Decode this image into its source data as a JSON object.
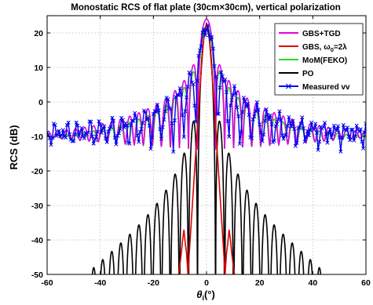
{
  "chart_data": {
    "type": "line",
    "title": "Monostatic RCS of flat plate (30cm×30cm), vertical polarization",
    "xlabel": "θi(°)",
    "xlabel_parts": {
      "symbol": "θ",
      "sub": "i",
      "unit": "(°)"
    },
    "ylabel": "RCS (dB)",
    "xlim": [
      -60,
      60
    ],
    "ylim": [
      -50,
      25
    ],
    "xticks": [
      -60,
      -40,
      -20,
      0,
      20,
      40,
      60
    ],
    "yticks": [
      -50,
      -40,
      -30,
      -20,
      -10,
      0,
      10,
      20
    ],
    "xtick_labels": [
      "-60",
      "-40",
      "-20",
      "0",
      "20",
      "40",
      "60"
    ],
    "ytick_labels": [
      "-50",
      "-40",
      "-30",
      "-20",
      "-10",
      "0",
      "10",
      "20"
    ],
    "grid": true,
    "legend_position": "top-right",
    "series": [
      {
        "name": "GBS+TGD",
        "legend_parts": [
          "GBS+TGD"
        ],
        "color": "#e000e0",
        "marker": "none"
      },
      {
        "name": "GBS, ω0=2λ",
        "legend_parts": [
          "GBS, ",
          "ω",
          "0",
          "=2λ"
        ],
        "color": "#e00000",
        "marker": "none"
      },
      {
        "name": "MoM(FEKO)",
        "legend_parts": [
          "MoM(FEKO)"
        ],
        "color": "#22dd22",
        "marker": "none"
      },
      {
        "name": "PO",
        "legend_parts": [
          "PO"
        ],
        "color": "#000000",
        "marker": "none"
      },
      {
        "name": "Measured vv",
        "legend_parts": [
          "Measured vv"
        ],
        "color": "#0000ee",
        "marker": "x"
      }
    ],
    "peak_values": {
      "GBS+TGD": 24,
      "GBS, ω0=2λ": 23,
      "MoM(FEKO)": 22,
      "PO": 21,
      "Measured vv": 21
    },
    "gbs_curve": {
      "x": [
        -10.5,
        -9.5,
        -9,
        -8.5,
        -8,
        -7.5,
        -7,
        -6,
        -5,
        -4,
        -3,
        -2,
        -1,
        0,
        1,
        2,
        3,
        4,
        5,
        6,
        7,
        7.5,
        8,
        8.5,
        9,
        9.5,
        10.5
      ],
      "y": [
        -50,
        -44,
        -40,
        -37,
        -41,
        -44,
        -50,
        -38,
        -26,
        -14,
        -2,
        9,
        19,
        23,
        19,
        9,
        -2,
        -14,
        -26,
        -38,
        -50,
        -44,
        -41,
        -37,
        -40,
        -44,
        -50
      ]
    }
  }
}
